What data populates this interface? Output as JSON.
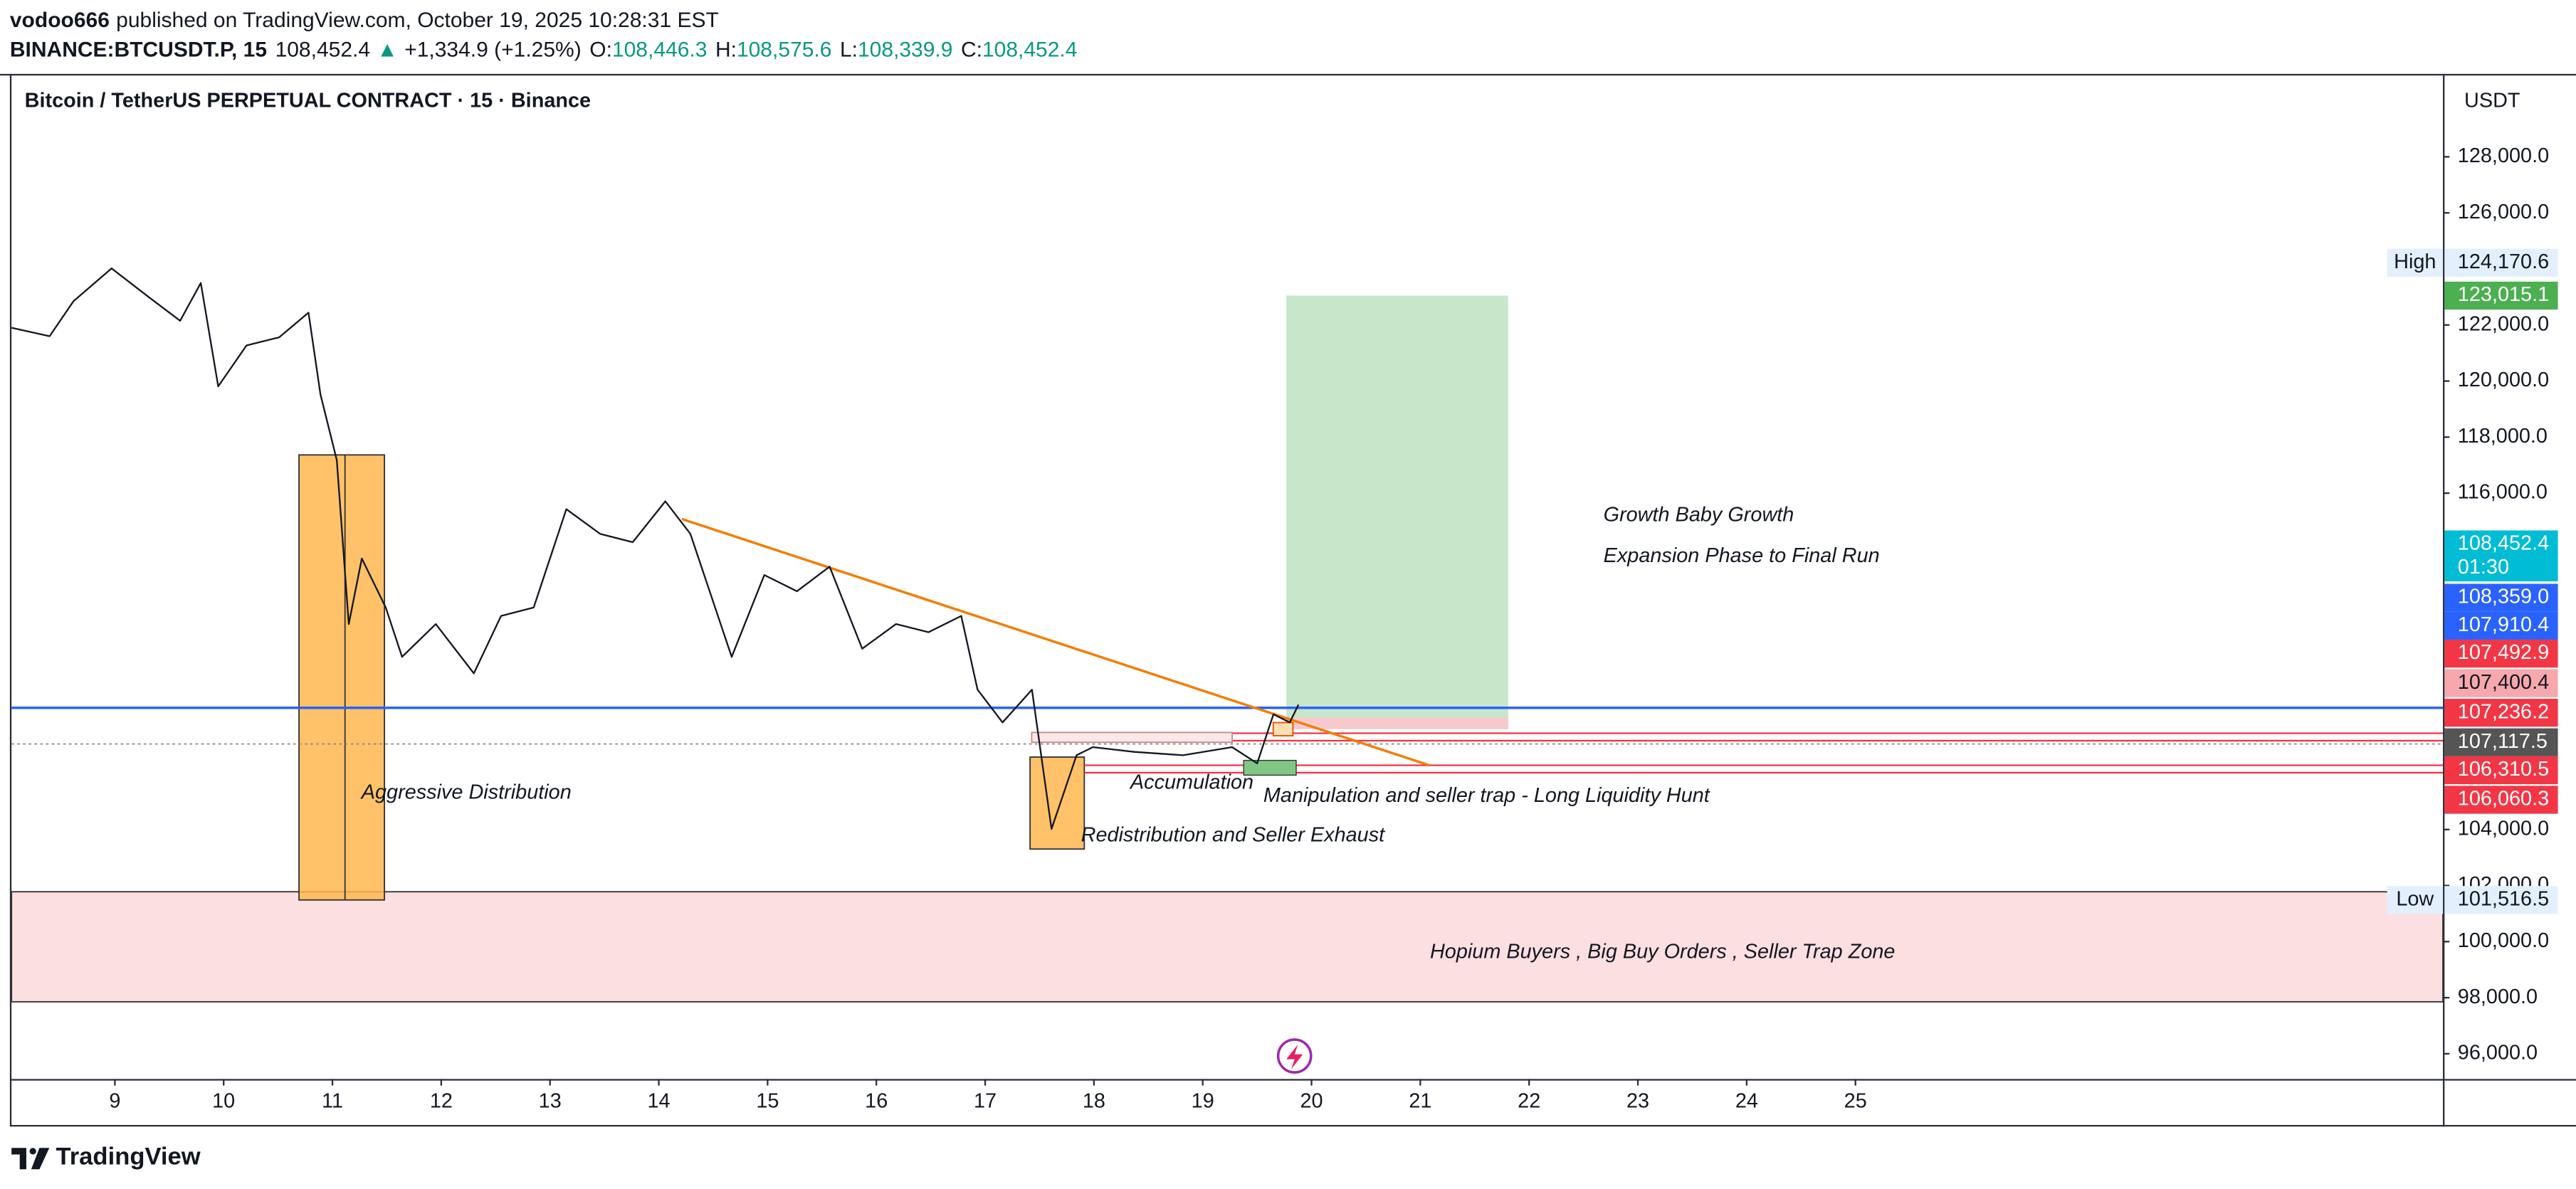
{
  "header": {
    "author": "vodoo666",
    "published": "published on TradingView.com, October 19, 2025 10:28:31 EST",
    "symbol": "BINANCE:BTCUSDT.P, 15",
    "price": "108,452.4",
    "arrow": "▲",
    "change": "+1,334.9 (+1.25%)",
    "ohlc": [
      {
        "label": "O:",
        "value": "108,446.3"
      },
      {
        "label": "H:",
        "value": "108,575.6"
      },
      {
        "label": "L:",
        "value": "108,339.9"
      },
      {
        "label": "C:",
        "value": "108,452.4"
      }
    ]
  },
  "chart_data": {
    "type": "line",
    "title": "Bitcoin / TetherUS PERPETUAL CONTRACT · 15 · Binance",
    "currency": "USDT",
    "color": "#131722",
    "grid": false,
    "x": [
      8.05,
      8.4,
      8.62,
      8.97,
      9.3,
      9.6,
      9.79,
      9.95,
      10.21,
      10.51,
      10.78,
      10.89,
      11.04,
      11.15,
      11.27,
      11.49,
      11.64,
      11.95,
      12.3,
      12.55,
      12.85,
      13.15,
      13.46,
      13.76,
      14.06,
      14.29,
      14.67,
      14.97,
      15.27,
      15.57,
      15.87,
      16.18,
      16.48,
      16.78,
      16.93,
      17.16,
      17.43,
      17.61,
      17.84,
      17.99,
      18.37,
      18.82,
      19.27,
      19.5,
      19.65,
      19.8,
      19.88
    ],
    "values": [
      121900,
      121600,
      122850,
      124020,
      123030,
      122150,
      123500,
      119810,
      121270,
      121560,
      122440,
      119520,
      117180,
      111330,
      113670,
      111920,
      110160,
      111330,
      109570,
      111620,
      111920,
      115430,
      114550,
      114250,
      115710,
      114550,
      110160,
      113080,
      112500,
      113380,
      110450,
      111330,
      111040,
      111620,
      108990,
      107820,
      108990,
      104020,
      106650,
      106940,
      106770,
      106650,
      106940,
      106360,
      108110,
      107820,
      108452.4
    ],
    "xlim": [
      8.05,
      30.4
    ],
    "xticks": [
      9,
      10,
      11,
      12,
      13,
      14,
      15,
      16,
      17,
      18,
      19,
      20,
      21,
      22,
      23,
      24,
      25
    ],
    "ylim": [
      95100,
      130900
    ],
    "yticks": [
      {
        "value": 96000,
        "label": "96,000.0"
      },
      {
        "value": 98000,
        "label": "98,000.0"
      },
      {
        "value": 100000,
        "label": "100,000.0"
      },
      {
        "value": 102000,
        "label": "102,000.0"
      },
      {
        "value": 104000,
        "label": "104,000.0"
      },
      {
        "value": 116000,
        "label": "116,000.0"
      },
      {
        "value": 118000,
        "label": "118,000.0"
      },
      {
        "value": 120000,
        "label": "120,000.0"
      },
      {
        "value": 122000,
        "label": "122,000.0"
      },
      {
        "value": 126000,
        "label": "126,000.0"
      },
      {
        "value": 128000,
        "label": "128,000.0"
      }
    ],
    "price_labels": [
      {
        "value": 124170.6,
        "label": "124,170.6",
        "tag": "High",
        "color": "#e3effd"
      },
      {
        "value": 123015.1,
        "label": "123,015.1",
        "color": "#4caf50"
      },
      {
        "value": 108452.4,
        "label": "108,452.4",
        "countdown": "01:30",
        "color": "#00bcd4"
      },
      {
        "value": 108359.0,
        "label": "108,359.0",
        "color": "#2962ff"
      },
      {
        "value": 107910.4,
        "label": "107,910.4",
        "color": "#2962ff"
      },
      {
        "value": 107492.9,
        "label": "107,492.9",
        "color": "#f23645"
      },
      {
        "value": 107400.4,
        "label": "107,400.4",
        "color": "#f7a8ad"
      },
      {
        "value": 107236.2,
        "label": "107,236.2",
        "color": "#f23645"
      },
      {
        "value": 107117.5,
        "label": "107,117.5",
        "color": "#555555"
      },
      {
        "value": 106310.5,
        "label": "106,310.5",
        "color": "#f23645"
      },
      {
        "value": 106060.3,
        "label": "106,060.3",
        "color": "#f23645"
      },
      {
        "value": 101516.5,
        "label": "101,516.5",
        "tag": "Low",
        "color": "#e3effd"
      }
    ],
    "annotations": [
      "Aggressive Distribution",
      "Accumulation",
      "Manipulation and seller trap - Long Liquidity Hunt",
      "Redistribution and Seller Exhaust",
      "Growth Baby Growth",
      "Expansion Phase to Final Run",
      "Hopium Buyers , Big Buy Orders , Seller Trap Zone"
    ]
  },
  "footer": {
    "brand": "TradingView"
  }
}
